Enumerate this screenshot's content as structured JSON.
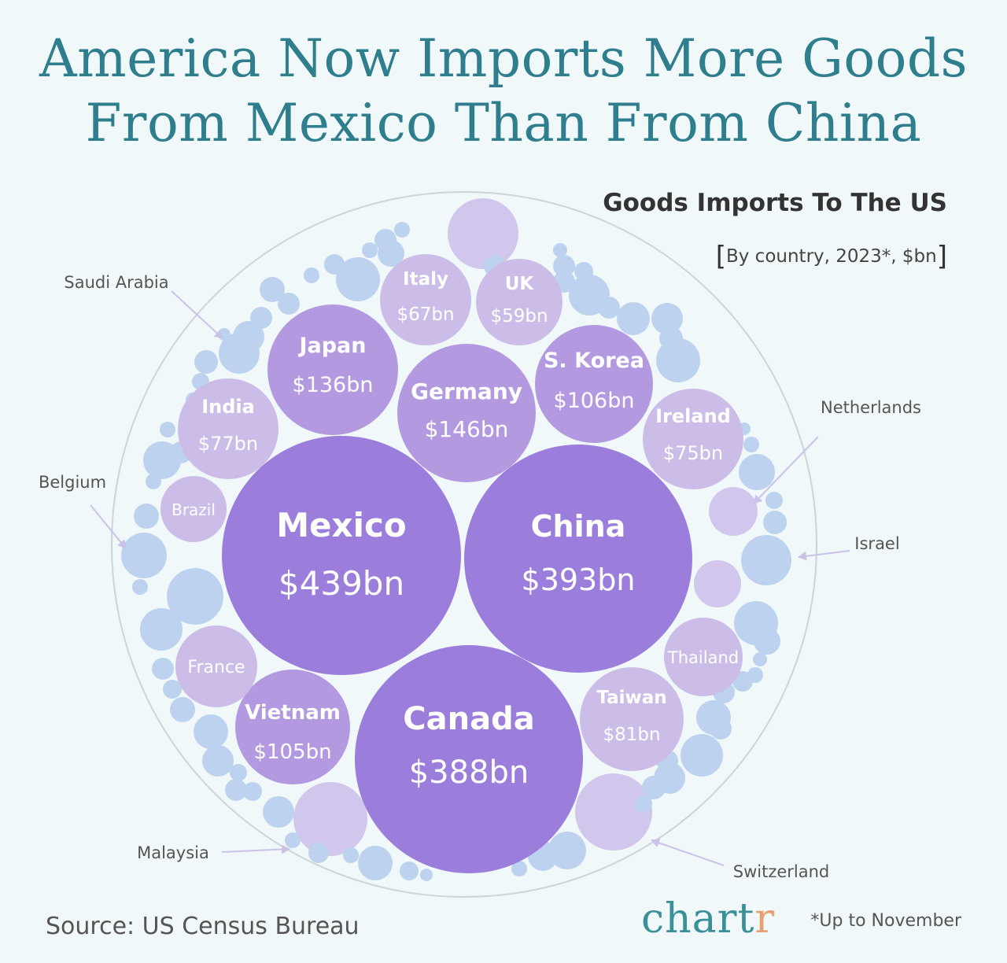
{
  "title_line1": "America Now Imports More Goods",
  "title_line2": "From Mexico Than From China",
  "subtitle": "Goods Imports To The US",
  "subnote": "By country, 2023*, $bn",
  "subnote_open": "[",
  "subnote_close": "]",
  "source": "Source: US Census Bureau",
  "logo_main": "chart",
  "logo_end": "r",
  "footnote": "*Up to November",
  "colors": {
    "background": "#f1f8fa",
    "title": "#2f7e8e",
    "large": "#9b7ddc",
    "medium": "#b39ae0",
    "light": "#cbbde8",
    "filler": "#bcd2ee",
    "callout_arrow": "#c9c3e8"
  },
  "chart_data": {
    "type": "bubble",
    "unit": "$bn",
    "countries": [
      {
        "name": "Mexico",
        "value": 439,
        "value_label": "$439bn"
      },
      {
        "name": "China",
        "value": 393,
        "value_label": "$393bn"
      },
      {
        "name": "Canada",
        "value": 388,
        "value_label": "$388bn"
      },
      {
        "name": "Germany",
        "value": 146,
        "value_label": "$146bn"
      },
      {
        "name": "Japan",
        "value": 136,
        "value_label": "$136bn"
      },
      {
        "name": "S. Korea",
        "value": 106,
        "value_label": "$106bn"
      },
      {
        "name": "Vietnam",
        "value": 105,
        "value_label": "$105bn"
      },
      {
        "name": "Taiwan",
        "value": 81,
        "value_label": "$81bn"
      },
      {
        "name": "India",
        "value": 77,
        "value_label": "$77bn"
      },
      {
        "name": "Ireland",
        "value": 75,
        "value_label": "$75bn"
      },
      {
        "name": "Italy",
        "value": 67,
        "value_label": "$67bn"
      },
      {
        "name": "UK",
        "value": 59,
        "value_label": "$59bn"
      },
      {
        "name": "France",
        "value_label": ""
      },
      {
        "name": "Thailand",
        "value_label": ""
      },
      {
        "name": "Brazil",
        "value_label": ""
      }
    ],
    "callouts": [
      "Saudi Arabia",
      "Netherlands",
      "Belgium",
      "Israel",
      "Malaysia",
      "Switzerland"
    ]
  }
}
